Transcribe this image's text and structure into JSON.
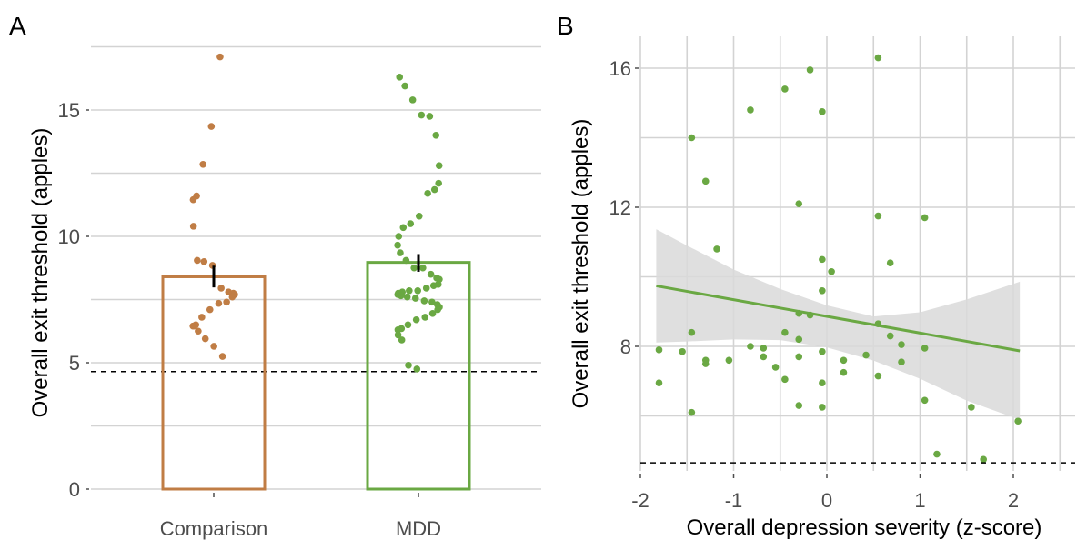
{
  "chart_data": [
    {
      "panel_label": "A",
      "type": "bar",
      "ylabel": "Overall exit threshold (apples)",
      "xlabel": "",
      "categories": [
        "Comparison",
        "MDD"
      ],
      "values": [
        8.4,
        8.97
      ],
      "error": [
        [
          7.98,
          8.84
        ],
        [
          8.6,
          9.3
        ]
      ],
      "ylim": [
        0,
        17.5
      ],
      "yticks": [
        0,
        5,
        10,
        15
      ],
      "grid": true,
      "reference_line": 4.65,
      "colors": [
        "#c07d45",
        "#6aa843"
      ],
      "points": [
        {
          "group": "Comparison",
          "values": [
            17.1,
            14.35,
            12.85,
            11.6,
            11.45,
            10.4,
            9.05,
            9.0,
            8.85,
            7.95,
            7.8,
            7.75,
            7.7,
            7.6,
            7.4,
            7.35,
            7.1,
            6.8,
            6.5,
            6.45,
            6.45,
            6.25,
            5.95,
            5.65,
            5.25
          ]
        },
        {
          "group": "MDD",
          "values": [
            16.3,
            15.95,
            15.4,
            14.8,
            14.75,
            14.0,
            12.8,
            12.1,
            11.85,
            11.7,
            10.8,
            10.5,
            10.35,
            10.0,
            9.65,
            9.35,
            9.05,
            8.75,
            8.75,
            8.5,
            8.35,
            8.3,
            8.1,
            8.05,
            7.95,
            7.85,
            7.85,
            7.8,
            7.75,
            7.7,
            7.65,
            7.6,
            7.55,
            7.45,
            7.4,
            7.3,
            7.2,
            7.1,
            6.95,
            6.8,
            6.7,
            6.5,
            6.35,
            6.3,
            6.1,
            5.9,
            4.9,
            4.75
          ]
        }
      ]
    },
    {
      "panel_label": "B",
      "type": "scatter",
      "xlabel": "Overall depression severity (z-score)",
      "ylabel": "Overall exit threshold (apples)",
      "xlim": [
        -2.05,
        2.65
      ],
      "ylim": [
        4.4,
        17.0
      ],
      "xticks": [
        -2,
        -1,
        0,
        1,
        2
      ],
      "yticks": [
        8,
        12,
        16
      ],
      "grid": true,
      "reference_line": 4.65,
      "color": "#6aa843",
      "ribbon_color": "#d9d9d9",
      "trend": {
        "x": [
          -1.83,
          2.07
        ],
        "y": [
          9.74,
          7.87
        ]
      },
      "ci": {
        "x": [
          -1.83,
          -1.5,
          -1.0,
          -0.5,
          0.0,
          0.5,
          1.0,
          1.5,
          2.07
        ],
        "lower": [
          8.11,
          8.14,
          8.2,
          8.18,
          7.97,
          7.59,
          7.07,
          6.44,
          5.89
        ],
        "upper": [
          11.37,
          10.9,
          10.21,
          9.65,
          9.18,
          8.86,
          8.98,
          9.35,
          9.86
        ]
      },
      "points": [
        {
          "x": -1.8,
          "y": 7.9
        },
        {
          "x": -1.8,
          "y": 6.95
        },
        {
          "x": -1.55,
          "y": 7.85
        },
        {
          "x": -1.45,
          "y": 14.0
        },
        {
          "x": -1.45,
          "y": 8.4
        },
        {
          "x": -1.45,
          "y": 6.1
        },
        {
          "x": -1.3,
          "y": 12.75
        },
        {
          "x": -1.3,
          "y": 7.6
        },
        {
          "x": -1.3,
          "y": 7.5
        },
        {
          "x": -1.18,
          "y": 10.8
        },
        {
          "x": -1.05,
          "y": 7.6
        },
        {
          "x": -0.82,
          "y": 14.8
        },
        {
          "x": -0.82,
          "y": 8.0
        },
        {
          "x": -0.68,
          "y": 7.95
        },
        {
          "x": -0.68,
          "y": 7.7
        },
        {
          "x": -0.55,
          "y": 7.4
        },
        {
          "x": -0.45,
          "y": 15.4
        },
        {
          "x": -0.45,
          "y": 8.4
        },
        {
          "x": -0.45,
          "y": 7.05
        },
        {
          "x": -0.3,
          "y": 12.1
        },
        {
          "x": -0.3,
          "y": 8.95
        },
        {
          "x": -0.3,
          "y": 8.2
        },
        {
          "x": -0.3,
          "y": 7.7
        },
        {
          "x": -0.3,
          "y": 6.3
        },
        {
          "x": -0.18,
          "y": 15.95
        },
        {
          "x": -0.18,
          "y": 8.9
        },
        {
          "x": -0.05,
          "y": 14.75
        },
        {
          "x": -0.05,
          "y": 10.5
        },
        {
          "x": -0.05,
          "y": 9.6
        },
        {
          "x": -0.05,
          "y": 7.85
        },
        {
          "x": -0.05,
          "y": 6.95
        },
        {
          "x": -0.05,
          "y": 6.25
        },
        {
          "x": 0.05,
          "y": 10.15
        },
        {
          "x": 0.18,
          "y": 7.6
        },
        {
          "x": 0.18,
          "y": 7.25
        },
        {
          "x": 0.42,
          "y": 7.75
        },
        {
          "x": 0.55,
          "y": 16.3
        },
        {
          "x": 0.55,
          "y": 11.75
        },
        {
          "x": 0.55,
          "y": 8.65
        },
        {
          "x": 0.55,
          "y": 7.15
        },
        {
          "x": 0.68,
          "y": 10.4
        },
        {
          "x": 0.68,
          "y": 8.3
        },
        {
          "x": 0.8,
          "y": 8.05
        },
        {
          "x": 0.8,
          "y": 7.55
        },
        {
          "x": 1.05,
          "y": 11.7
        },
        {
          "x": 1.05,
          "y": 7.95
        },
        {
          "x": 1.05,
          "y": 6.45
        },
        {
          "x": 1.18,
          "y": 4.9
        },
        {
          "x": 1.55,
          "y": 6.25
        },
        {
          "x": 1.68,
          "y": 4.75
        },
        {
          "x": 2.05,
          "y": 5.85
        }
      ]
    }
  ]
}
